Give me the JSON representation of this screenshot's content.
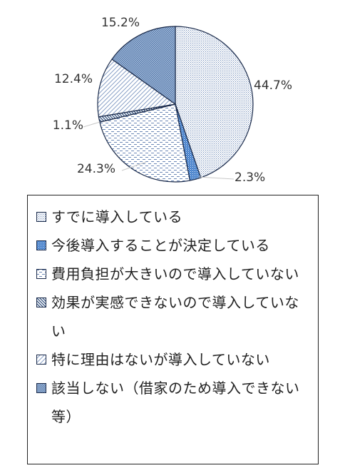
{
  "chart_data": {
    "type": "pie",
    "slices": [
      {
        "label": "すでに導入している",
        "value": 44.7,
        "value_label": "44.7%",
        "pattern": "dots"
      },
      {
        "label": "今後導入することが決定している",
        "value": 2.3,
        "value_label": "2.3%",
        "pattern": "blue-dots"
      },
      {
        "label": "費用負担が大きいので導入していない",
        "value": 24.3,
        "value_label": "24.3%",
        "pattern": "dashes"
      },
      {
        "label": "効果が実感できないので導入していない",
        "value": 1.1,
        "value_label": "1.1%",
        "pattern": "diag-down"
      },
      {
        "label": "特に理由はないが導入していない",
        "value": 12.4,
        "value_label": "12.4%",
        "pattern": "diag-up"
      },
      {
        "label": "該当しない（借家のため導入できない等）",
        "value": 15.2,
        "value_label": "15.2%",
        "pattern": "grid"
      }
    ],
    "start_angle_deg": 0,
    "direction": "clockwise",
    "legend_position": "bottom",
    "stroke_color": "#1a2a4a"
  }
}
